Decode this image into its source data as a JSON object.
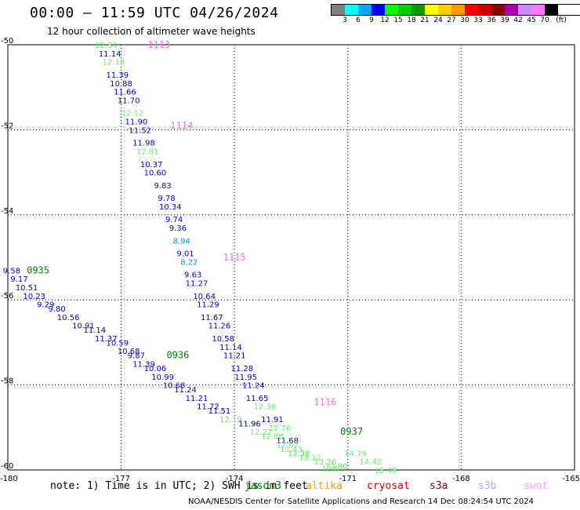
{
  "header": {
    "title": "00:00 — 11:59 UTC 04/26/2024",
    "subtitle": "12 hour collection of altimeter wave heights"
  },
  "legend": {
    "colors": [
      "#7f7f7f",
      "#00ffff",
      "#00aaff",
      "#0000ff",
      "#00ff00",
      "#00cc00",
      "#009900",
      "#ffff00",
      "#ffcc00",
      "#ff9900",
      "#ff0000",
      "#cc0000",
      "#880000",
      "#aa00aa",
      "#cc88ff",
      "#ff77ff",
      "#000000"
    ],
    "labels": [
      "3",
      "6",
      "9",
      "12",
      "15",
      "18",
      "21",
      "24",
      "27",
      "30",
      "33",
      "36",
      "39",
      "42",
      "45",
      "70",
      "(ft)"
    ]
  },
  "footer": {
    "note": "note: 1) Time is in UTC; 2) SWH is in feet",
    "satellites": [
      {
        "name": "jason3",
        "color": "#008000"
      },
      {
        "name": "altika",
        "color": "#ff9900"
      },
      {
        "name": "cryosat",
        "color": "#dd0000"
      },
      {
        "name": "s3a",
        "color": "#880000"
      },
      {
        "name": "s3b",
        "color": "#aaaaff"
      },
      {
        "name": "swot",
        "color": "#ff99ff"
      }
    ],
    "credit": "NOAA/NESDIS Center for Satellite Applications and Research    14 Dec 08:24:54 UTC 2024"
  },
  "chart_data": {
    "type": "scatter",
    "xlim": [
      -180,
      -165
    ],
    "ylim": [
      -60,
      -50
    ],
    "x_ticks": [
      "-180",
      "-177",
      "-174",
      "-171",
      "-168",
      "-165"
    ],
    "y_ticks": [
      "-50",
      "-52",
      "-54",
      "-56",
      "-58",
      "-60"
    ],
    "grid": true,
    "time_labels": [
      {
        "text": "1113",
        "lon": -176.0,
        "lat": -50.0,
        "color": "#ff66ff"
      },
      {
        "text": "1114",
        "lon": -175.4,
        "lat": -51.9,
        "color": "#ff66ff"
      },
      {
        "text": "1115",
        "lon": -174.0,
        "lat": -55.0,
        "color": "#ff66ff"
      },
      {
        "text": "1116",
        "lon": -171.6,
        "lat": -58.4,
        "color": "#ff66ff"
      },
      {
        "text": "0935",
        "lon": -179.2,
        "lat": -55.3,
        "color": "#008000"
      },
      {
        "text": "0936",
        "lon": -175.5,
        "lat": -57.3,
        "color": "#008000"
      },
      {
        "text": "0937",
        "lon": -170.9,
        "lat": -59.1,
        "color": "#008000"
      }
    ],
    "series": [
      {
        "points": [
          {
            "lon": -177.4,
            "lat": -50.0,
            "v": "12.34",
            "color": "#66ee66"
          },
          {
            "lon": -177.3,
            "lat": -50.2,
            "v": "11.14",
            "color": "#0000cc"
          },
          {
            "lon": -177.2,
            "lat": -50.4,
            "v": "12.18",
            "color": "#66ee66"
          },
          {
            "lon": -177.1,
            "lat": -50.7,
            "v": "11.39",
            "color": "#0000cc"
          },
          {
            "lon": -177.0,
            "lat": -50.9,
            "v": "10.88",
            "color": "#0000cc"
          },
          {
            "lon": -176.9,
            "lat": -51.1,
            "v": "11.66",
            "color": "#0000cc"
          },
          {
            "lon": -176.8,
            "lat": -51.3,
            "v": "11.70",
            "color": "#0000cc"
          },
          {
            "lon": -176.7,
            "lat": -51.6,
            "v": "12.12",
            "color": "#66ee66"
          },
          {
            "lon": -176.6,
            "lat": -51.8,
            "v": "11.90",
            "color": "#0000cc"
          },
          {
            "lon": -176.5,
            "lat": -52.0,
            "v": "11.52",
            "color": "#0000cc"
          },
          {
            "lon": -176.4,
            "lat": -52.3,
            "v": "11.98",
            "color": "#0000cc"
          },
          {
            "lon": -176.3,
            "lat": -52.5,
            "v": "12.81",
            "color": "#66ee66"
          },
          {
            "lon": -176.2,
            "lat": -52.8,
            "v": "10.37",
            "color": "#0000cc"
          },
          {
            "lon": -176.1,
            "lat": -53.0,
            "v": "10.60",
            "color": "#0000cc"
          },
          {
            "lon": -175.9,
            "lat": -53.3,
            "v": "9.83",
            "color": "#0000cc"
          },
          {
            "lon": -175.8,
            "lat": -53.6,
            "v": "9.78",
            "color": "#0000cc"
          },
          {
            "lon": -175.7,
            "lat": -53.8,
            "v": "10.34",
            "color": "#0000cc"
          },
          {
            "lon": -175.6,
            "lat": -54.1,
            "v": "9.74",
            "color": "#0000cc"
          },
          {
            "lon": -175.5,
            "lat": -54.3,
            "v": "9.36",
            "color": "#0000cc"
          },
          {
            "lon": -175.4,
            "lat": -54.6,
            "v": "8.94",
            "color": "#0099dd"
          },
          {
            "lon": -175.3,
            "lat": -54.9,
            "v": "9.01",
            "color": "#0000cc"
          },
          {
            "lon": -175.2,
            "lat": -55.1,
            "v": "8.22",
            "color": "#0099dd"
          },
          {
            "lon": -175.1,
            "lat": -55.4,
            "v": "9.63",
            "color": "#0000cc"
          },
          {
            "lon": -175.0,
            "lat": -55.6,
            "v": "11.27",
            "color": "#0000cc"
          },
          {
            "lon": -174.8,
            "lat": -55.9,
            "v": "10.64",
            "color": "#0000cc"
          },
          {
            "lon": -174.7,
            "lat": -56.1,
            "v": "11.29",
            "color": "#0000cc"
          },
          {
            "lon": -174.6,
            "lat": -56.4,
            "v": "11.67",
            "color": "#0000cc"
          },
          {
            "lon": -174.4,
            "lat": -56.6,
            "v": "11.26",
            "color": "#0000cc"
          },
          {
            "lon": -174.3,
            "lat": -56.9,
            "v": "10.58",
            "color": "#0000cc"
          },
          {
            "lon": -174.1,
            "lat": -57.1,
            "v": "11.14",
            "color": "#0000cc"
          },
          {
            "lon": -174.0,
            "lat": -57.3,
            "v": "11.21",
            "color": "#0000cc"
          },
          {
            "lon": -173.8,
            "lat": -57.6,
            "v": "11.28",
            "color": "#0000cc"
          },
          {
            "lon": -173.7,
            "lat": -57.8,
            "v": "11.95",
            "color": "#0000cc"
          },
          {
            "lon": -173.5,
            "lat": -58.0,
            "v": "11.24",
            "color": "#0000cc"
          },
          {
            "lon": -173.4,
            "lat": -58.3,
            "v": "11.65",
            "color": "#0000cc"
          },
          {
            "lon": -173.2,
            "lat": -58.5,
            "v": "12.38",
            "color": "#66ee66"
          },
          {
            "lon": -173.0,
            "lat": -58.8,
            "v": "11.91",
            "color": "#0000cc"
          },
          {
            "lon": -172.8,
            "lat": -59.0,
            "v": "12.76",
            "color": "#66ee66"
          },
          {
            "lon": -172.6,
            "lat": -59.3,
            "v": "11.68",
            "color": "#0000cc"
          },
          {
            "lon": -172.5,
            "lat": -59.5,
            "v": "12.43",
            "color": "#66ee66"
          },
          {
            "lon": -172.3,
            "lat": -59.6,
            "v": "13.30",
            "color": "#66ee66"
          }
        ]
      },
      {
        "points": [
          {
            "lon": -179.9,
            "lat": -55.3,
            "v": "9.58",
            "color": "#0000cc"
          },
          {
            "lon": -179.7,
            "lat": -55.5,
            "v": "9.17",
            "color": "#0000cc"
          },
          {
            "lon": -179.5,
            "lat": -55.7,
            "v": "10.51",
            "color": "#0000cc"
          },
          {
            "lon": -179.3,
            "lat": -55.9,
            "v": "10.23",
            "color": "#0000cc"
          },
          {
            "lon": -179.0,
            "lat": -56.1,
            "v": "9.29",
            "color": "#0000cc"
          },
          {
            "lon": -178.7,
            "lat": -56.2,
            "v": "9.80",
            "color": "#0000cc"
          },
          {
            "lon": -178.4,
            "lat": -56.4,
            "v": "10.56",
            "color": "#0000cc"
          },
          {
            "lon": -178.0,
            "lat": -56.6,
            "v": "10.91",
            "color": "#0000cc"
          },
          {
            "lon": -177.7,
            "lat": -56.7,
            "v": "11.14",
            "color": "#0000cc"
          },
          {
            "lon": -177.4,
            "lat": -56.9,
            "v": "11.37",
            "color": "#0000cc"
          },
          {
            "lon": -177.1,
            "lat": -57.0,
            "v": "10.59",
            "color": "#0000cc"
          },
          {
            "lon": -176.8,
            "lat": -57.2,
            "v": "10.68",
            "color": "#0000cc"
          },
          {
            "lon": -176.6,
            "lat": -57.3,
            "v": "9.87",
            "color": "#0000cc"
          },
          {
            "lon": -176.4,
            "lat": -57.5,
            "v": "11.39",
            "color": "#0000cc"
          },
          {
            "lon": -176.1,
            "lat": -57.6,
            "v": "10.06",
            "color": "#0000cc"
          },
          {
            "lon": -175.9,
            "lat": -57.8,
            "v": "10.99",
            "color": "#0000cc"
          },
          {
            "lon": -175.6,
            "lat": -58.0,
            "v": "10.68",
            "color": "#0000cc"
          },
          {
            "lon": -175.3,
            "lat": -58.1,
            "v": "11.24",
            "color": "#0000cc"
          },
          {
            "lon": -175.0,
            "lat": -58.3,
            "v": "11.21",
            "color": "#0000cc"
          },
          {
            "lon": -174.7,
            "lat": -58.5,
            "v": "11.72",
            "color": "#0000cc"
          },
          {
            "lon": -174.4,
            "lat": -58.6,
            "v": "11.51",
            "color": "#0000cc"
          },
          {
            "lon": -174.1,
            "lat": -58.8,
            "v": "12.19",
            "color": "#66ee66"
          },
          {
            "lon": -173.6,
            "lat": -58.9,
            "v": "11.96",
            "color": "#0000cc"
          },
          {
            "lon": -173.3,
            "lat": -59.1,
            "v": "12.22",
            "color": "#66ee66"
          },
          {
            "lon": -173.0,
            "lat": -59.2,
            "v": "12.88",
            "color": "#66ee66"
          },
          {
            "lon": -172.6,
            "lat": -59.4,
            "v": "12.87",
            "color": "#66ee66"
          },
          {
            "lon": -172.3,
            "lat": -59.6,
            "v": "12.77",
            "color": "#66ee66"
          },
          {
            "lon": -172.0,
            "lat": -59.7,
            "v": "13.12",
            "color": "#66ee66"
          },
          {
            "lon": -171.6,
            "lat": -59.8,
            "v": "13.26",
            "color": "#66ee66"
          },
          {
            "lon": -171.3,
            "lat": -59.9,
            "v": "13.80",
            "color": "#66ee66"
          },
          {
            "lon": -170.8,
            "lat": -59.6,
            "v": "14.79",
            "color": "#66ee66"
          },
          {
            "lon": -170.4,
            "lat": -59.8,
            "v": "14.42",
            "color": "#66ee66"
          },
          {
            "lon": -170.0,
            "lat": -60.0,
            "v": "15.46",
            "color": "#66ee66"
          },
          {
            "lon": -171.4,
            "lat": -59.95,
            "v": "12.61",
            "color": "#66ee66"
          }
        ]
      }
    ]
  }
}
